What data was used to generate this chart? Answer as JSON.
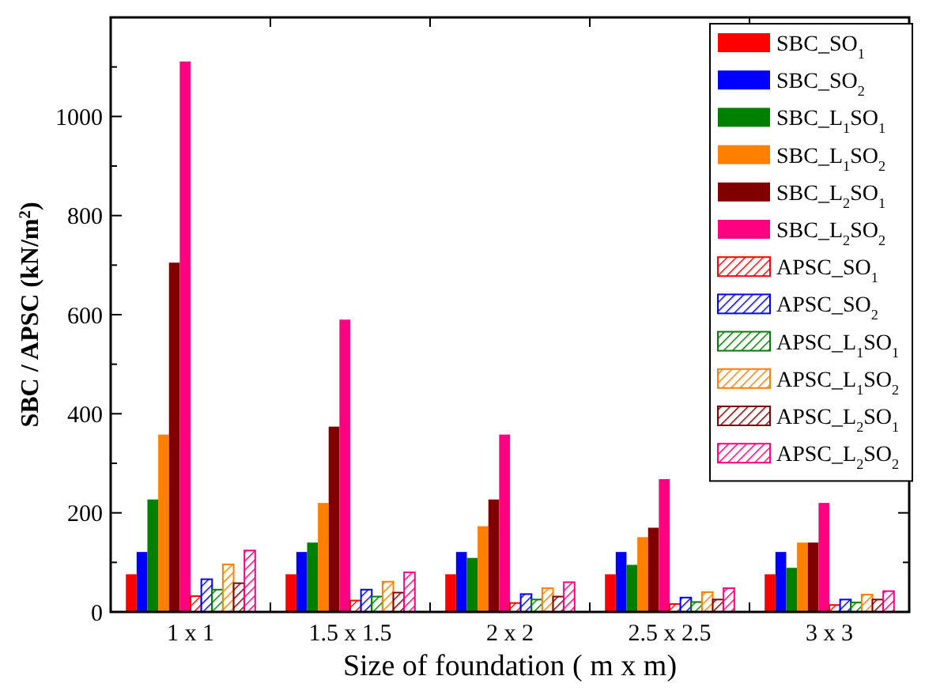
{
  "chart_data": {
    "type": "bar",
    "xlabel": "Size of foundation ( m x m)",
    "ylabel": "SBC / APSC (kN/m$^{2}$)",
    "categories": [
      "1 x 1",
      "1.5 x 1.5",
      "2 x 2",
      "2.5 x 2.5",
      "3 x 3"
    ],
    "ylim": [
      0,
      1200
    ],
    "yticks": [
      0,
      {
        "value": 100,
        "label": null
      },
      200,
      {
        "value": 300,
        "label": null
      },
      400,
      {
        "value": 500,
        "label": null
      },
      600,
      {
        "value": 700,
        "label": null
      },
      800,
      {
        "value": 900,
        "label": null
      },
      1000,
      {
        "value": 1100,
        "label": null
      }
    ],
    "legend": "top right",
    "grid": false,
    "series": [
      {
        "name": "SBC_SO$_{1}$",
        "color": "#ff0000",
        "values": [
          76,
          76,
          76,
          76,
          76
        ]
      },
      {
        "name": "SBC_SO$_{2}$",
        "color": "#0000ff",
        "values": [
          121,
          121,
          121,
          121,
          121
        ]
      },
      {
        "name": "SBC_L$_{1}$SO$_{1}$",
        "color": "#008000",
        "values": [
          227,
          140,
          109,
          95,
          89
        ]
      },
      {
        "name": "SBC_L$_{1}$SO$_{2}$",
        "color": "#ff8000",
        "values": [
          358,
          220,
          173,
          151,
          140
        ]
      },
      {
        "name": "SBC_L$_{2}$SO$_{1}$",
        "color": "#800000",
        "values": [
          705,
          374,
          227,
          170,
          140
        ]
      },
      {
        "name": "SBC_L$_{2}$SO$_{2}$",
        "color": "#ff0080",
        "values": [
          1111,
          590,
          358,
          268,
          220
        ]
      },
      {
        "name": "APSC_SO$_{1}$",
        "color": "#ff0000",
        "values": [
          32,
          23,
          18,
          16,
          14
        ]
      },
      {
        "name": "APSC_SO$_{2}$",
        "color": "#0000ff",
        "values": [
          66,
          45,
          36,
          29,
          25
        ]
      },
      {
        "name": "APSC_L$_{1}$SO$_{1}$",
        "color": "#008000",
        "values": [
          45,
          31,
          25,
          20,
          19
        ]
      },
      {
        "name": "APSC_L$_{1}$SO$_{2}$",
        "color": "#ff8000",
        "values": [
          96,
          61,
          48,
          40,
          35
        ]
      },
      {
        "name": "APSC_L$_{2}$SO$_{1}$",
        "color": "#800000",
        "values": [
          58,
          39,
          31,
          25,
          25
        ]
      },
      {
        "name": "APSC_L$_{2}$SO$_{2}$",
        "color": "#ff0080",
        "values": [
          124,
          80,
          60,
          48,
          42
        ]
      }
    ]
  }
}
